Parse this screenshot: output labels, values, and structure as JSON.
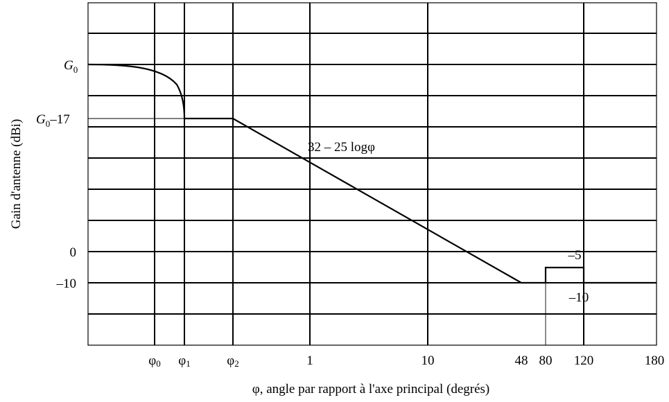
{
  "chart_data": {
    "type": "line",
    "xlabel": "φ, angle par rapport à l'axe principal (degrés)",
    "ylabel": "Gain d'antenne (dBi)",
    "x_scale": "log",
    "x_ticks": [
      {
        "label": "φ",
        "sub": "0",
        "value": "φ0"
      },
      {
        "label": "φ",
        "sub": "1",
        "value": "φ1"
      },
      {
        "label": "φ",
        "sub": "2",
        "value": "φ2"
      },
      {
        "label": "1",
        "value": 1
      },
      {
        "label": "10",
        "value": 10
      },
      {
        "label": "48",
        "value": 48
      },
      {
        "label": "80",
        "value": 80
      },
      {
        "label": "120",
        "value": 120
      },
      {
        "label": "180",
        "value": 180
      }
    ],
    "y_ticks": [
      {
        "label": "G",
        "sub": "0",
        "suffix": "",
        "value": "G0"
      },
      {
        "label": "G",
        "sub": "0",
        "suffix": "–17",
        "value": "G0-17"
      },
      {
        "label": "0",
        "value": 0
      },
      {
        "label": "–10",
        "value": -10
      }
    ],
    "annotations": [
      "32 – 25 logφ",
      "–5",
      "–10"
    ],
    "segments": [
      {
        "from": "0",
        "to": "φ1",
        "gain": "G0 → G0-17 (main lobe)"
      },
      {
        "from": "φ1",
        "to": "φ2",
        "gain": "G0-17"
      },
      {
        "from": "φ2",
        "to": 48,
        "gain": "32 – 25 logφ"
      },
      {
        "from": 48,
        "to": 80,
        "gain": -10
      },
      {
        "from": 80,
        "to": 120,
        "gain": -5
      },
      {
        "from": 120,
        "to": 180,
        "gain": -10
      }
    ]
  }
}
